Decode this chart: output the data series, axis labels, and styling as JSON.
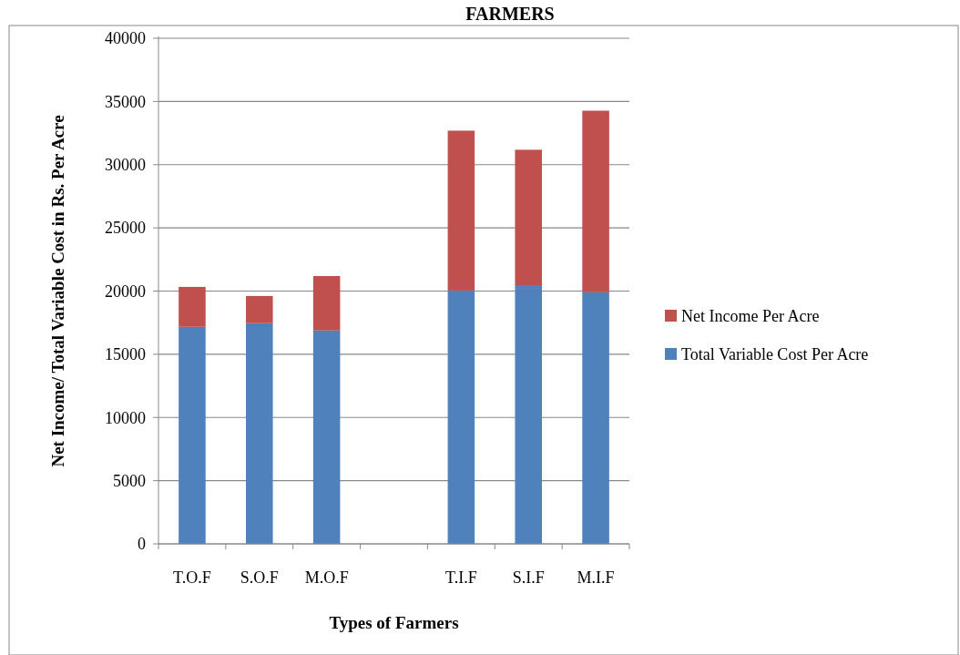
{
  "chart_data": {
    "type": "bar",
    "title": "FARMERS",
    "xlabel": "Types of Farmers",
    "ylabel": "Net Income/ Total Variable Cost in Rs. Per Acre",
    "categories": [
      "T.O.F",
      "S.O.F",
      "M.O.F",
      null,
      "T.I.F",
      "S.I.F",
      "M.I.F"
    ],
    "stacked": true,
    "series": [
      {
        "name": "Total Variable Cost Per Acre",
        "color": "#4f81bd",
        "values": [
          17170,
          17460,
          16880,
          null,
          20040,
          20470,
          19900
        ]
      },
      {
        "name": "Net Income Per Acre",
        "color": "#c0504d",
        "values": [
          3160,
          2150,
          4310,
          null,
          12650,
          10710,
          14370
        ]
      }
    ],
    "ylim": [
      0,
      40000
    ],
    "yticks": [
      0,
      5000,
      10000,
      15000,
      20000,
      25000,
      30000,
      35000,
      40000
    ],
    "grid": "y",
    "legend": "right"
  }
}
